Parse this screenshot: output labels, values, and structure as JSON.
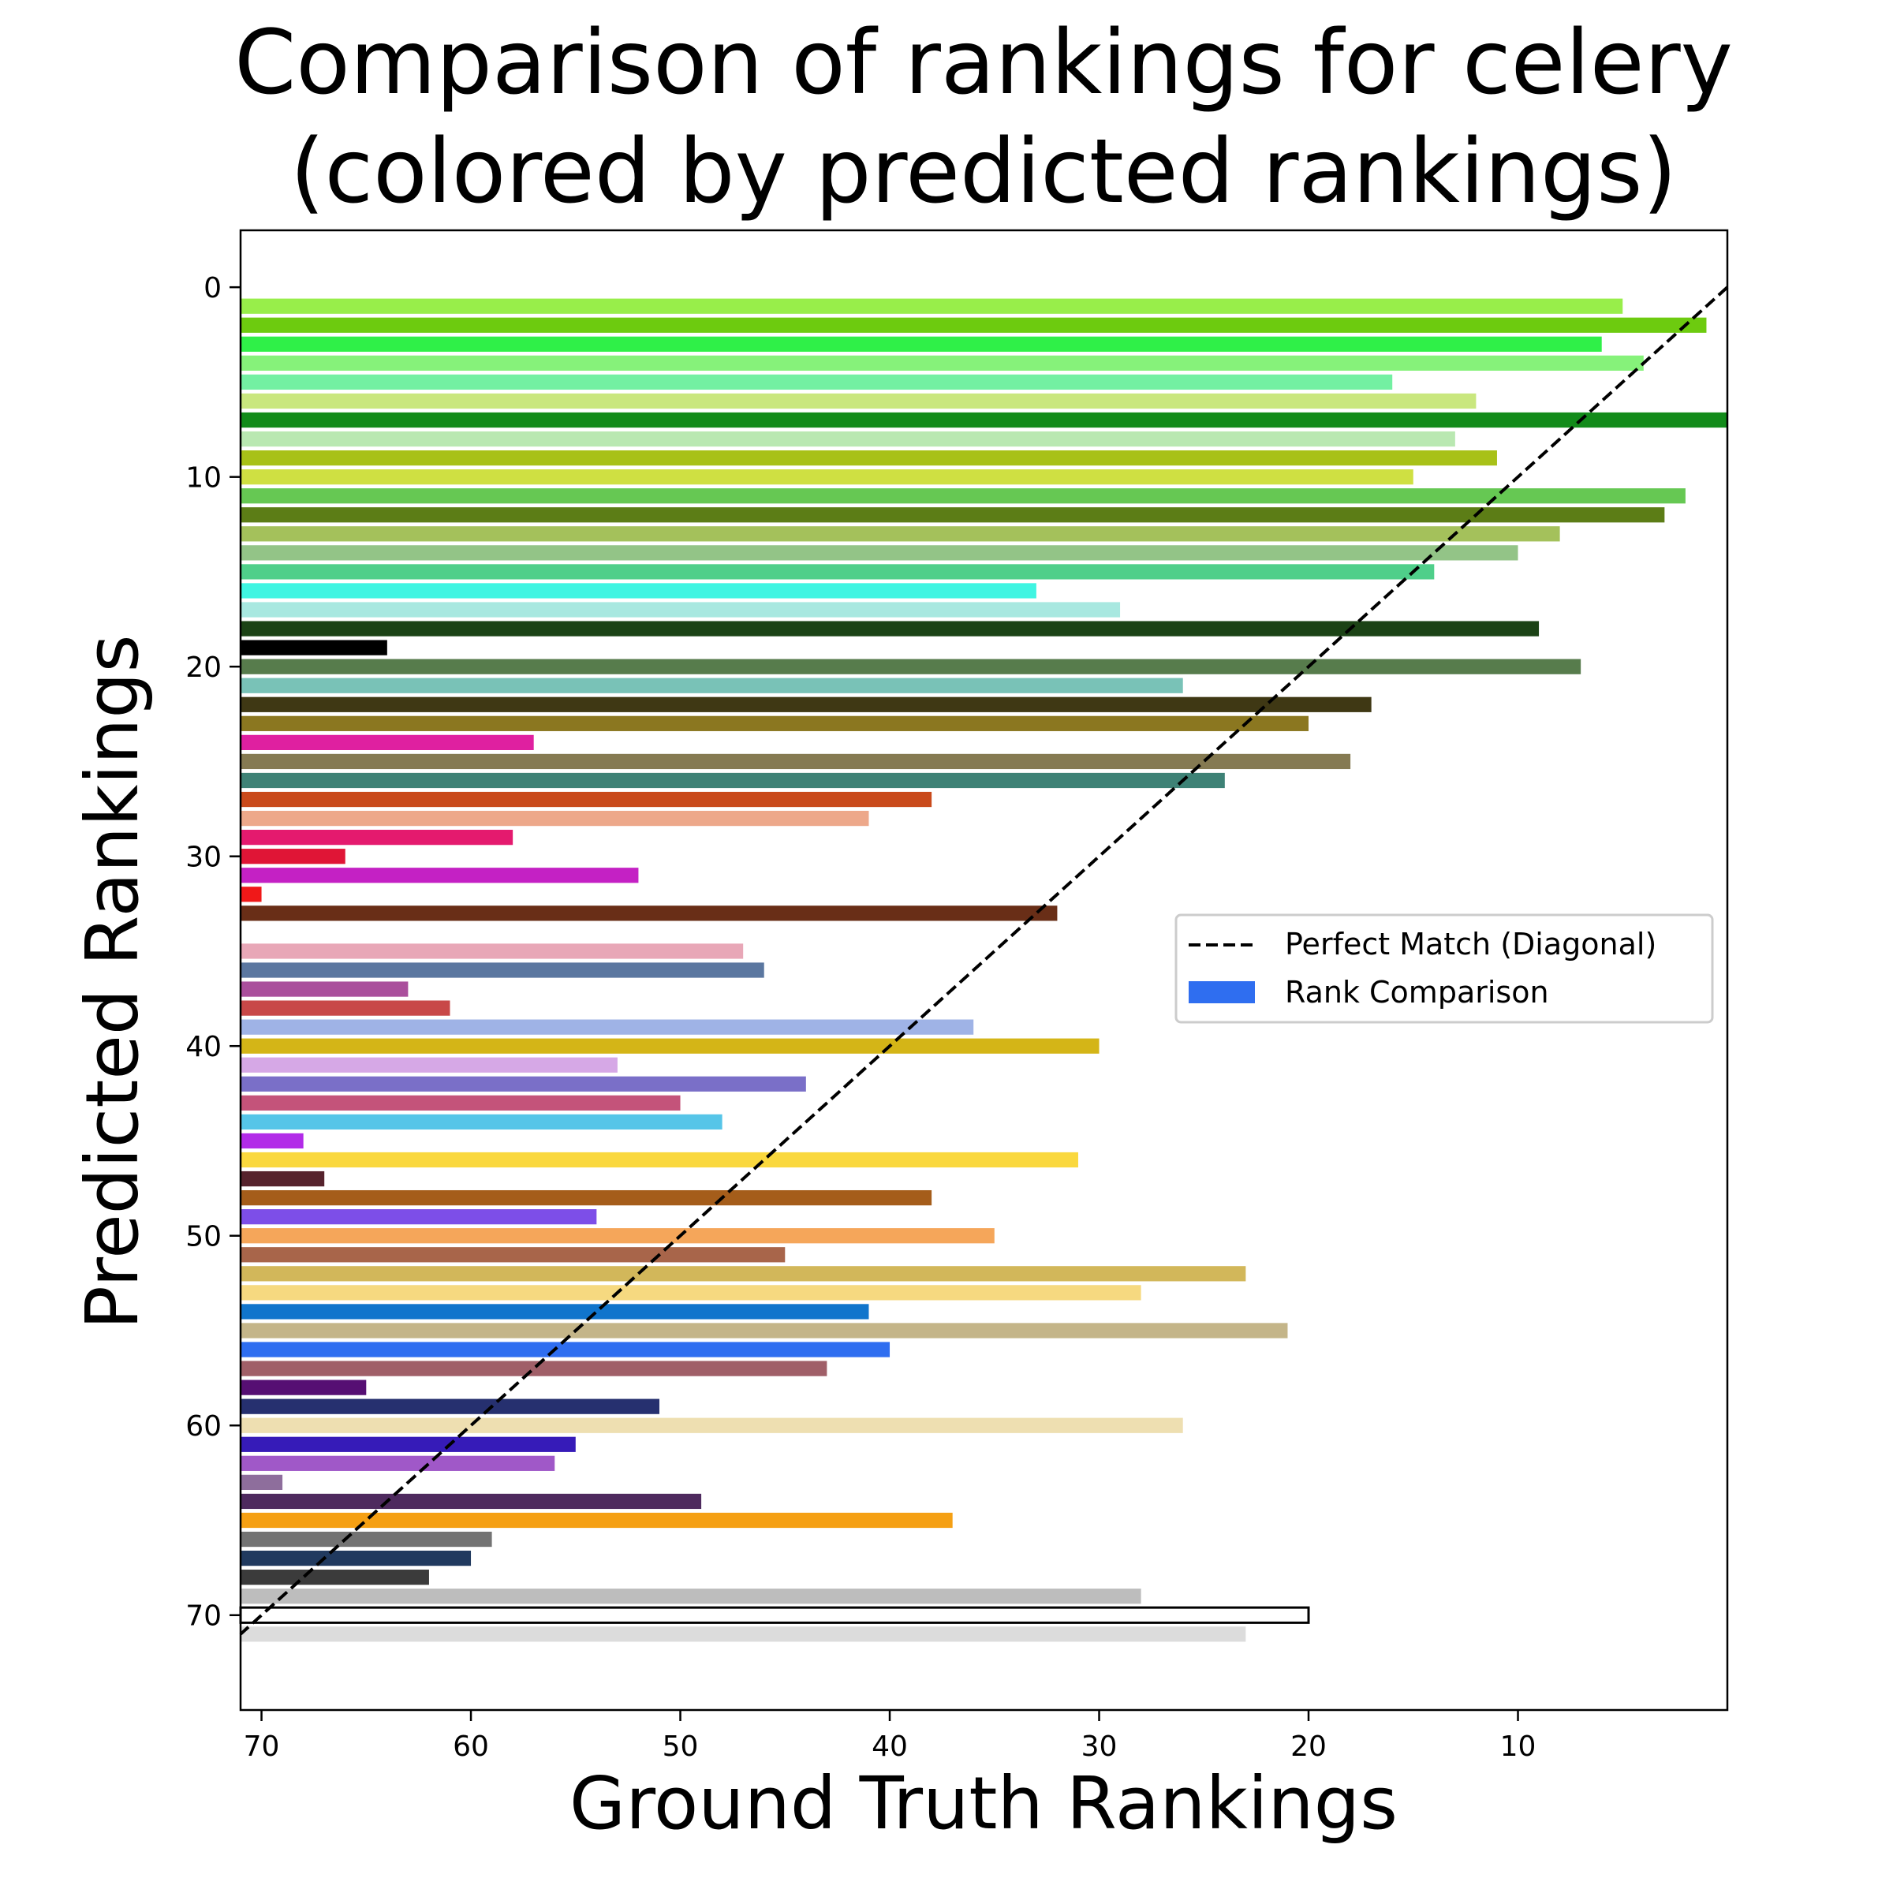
{
  "chart_data": {
    "type": "bar",
    "orientation": "horizontal",
    "title_lines": [
      "Comparison of rankings for celery",
      "(colored by predicted rankings)"
    ],
    "xlabel": "Ground Truth Rankings",
    "ylabel": "Predicted Rankings",
    "xlim": [
      71,
      0
    ],
    "ylim": [
      75,
      -3
    ],
    "x_ticks": [
      70,
      60,
      50,
      40,
      30,
      20,
      10
    ],
    "y_ticks": [
      0,
      10,
      20,
      30,
      40,
      50,
      60,
      70
    ],
    "grid": false,
    "legend_position": "center-right",
    "legend": [
      {
        "label": "Perfect Match (Diagonal)",
        "kind": "dashed-line",
        "color": "#000000"
      },
      {
        "label": "Rank Comparison",
        "kind": "patch",
        "color": "#2f6ef0"
      }
    ],
    "diagonal": {
      "from": [
        0,
        0
      ],
      "to": [
        71,
        71
      ],
      "style": "dashed",
      "color": "#000000"
    },
    "series": [
      {
        "name": "Rank Comparison",
        "points": [
          {
            "predicted": 1,
            "truth": 5,
            "color": "#98ee4a"
          },
          {
            "predicted": 2,
            "truth": 1,
            "color": "#6dcb0f"
          },
          {
            "predicted": 3,
            "truth": 6,
            "color": "#2ff048"
          },
          {
            "predicted": 4,
            "truth": 4,
            "color": "#86f27a"
          },
          {
            "predicted": 5,
            "truth": 16,
            "color": "#73f0a2"
          },
          {
            "predicted": 6,
            "truth": 12,
            "color": "#c9e77e"
          },
          {
            "predicted": 7,
            "truth": 0,
            "color": "#128b1a"
          },
          {
            "predicted": 8,
            "truth": 13,
            "color": "#b9e8b1"
          },
          {
            "predicted": 9,
            "truth": 11,
            "color": "#a8c118"
          },
          {
            "predicted": 10,
            "truth": 15,
            "color": "#cfe042"
          },
          {
            "predicted": 11,
            "truth": 2,
            "color": "#66c853"
          },
          {
            "predicted": 12,
            "truth": 3,
            "color": "#5c7d16"
          },
          {
            "predicted": 13,
            "truth": 8,
            "color": "#a4c15b"
          },
          {
            "predicted": 14,
            "truth": 10,
            "color": "#93c487"
          },
          {
            "predicted": 15,
            "truth": 14,
            "color": "#4fcf8a"
          },
          {
            "predicted": 16,
            "truth": 33,
            "color": "#3ff5e2"
          },
          {
            "predicted": 17,
            "truth": 29,
            "color": "#a8e8e0"
          },
          {
            "predicted": 18,
            "truth": 9,
            "color": "#1c4316"
          },
          {
            "predicted": 19,
            "truth": 64,
            "color": "#000000"
          },
          {
            "predicted": 20,
            "truth": 7,
            "color": "#577c4c"
          },
          {
            "predicted": 21,
            "truth": 26,
            "color": "#79c2b7"
          },
          {
            "predicted": 22,
            "truth": 17,
            "color": "#3f3814"
          },
          {
            "predicted": 23,
            "truth": 20,
            "color": "#8b7720"
          },
          {
            "predicted": 24,
            "truth": 57,
            "color": "#df20a0"
          },
          {
            "predicted": 25,
            "truth": 18,
            "color": "#857a52"
          },
          {
            "predicted": 26,
            "truth": 24,
            "color": "#3e8276"
          },
          {
            "predicted": 27,
            "truth": 38,
            "color": "#c94a1b"
          },
          {
            "predicted": 28,
            "truth": 41,
            "color": "#eda88a"
          },
          {
            "predicted": 29,
            "truth": 58,
            "color": "#e41a6e"
          },
          {
            "predicted": 30,
            "truth": 66,
            "color": "#e01536"
          },
          {
            "predicted": 31,
            "truth": 52,
            "color": "#c421c4"
          },
          {
            "predicted": 32,
            "truth": 70,
            "color": "#f01818"
          },
          {
            "predicted": 33,
            "truth": 32,
            "color": "#692e17"
          },
          {
            "predicted": 35,
            "truth": 47,
            "color": "#e8a7b7"
          },
          {
            "predicted": 36,
            "truth": 46,
            "color": "#5b77a0"
          },
          {
            "predicted": 37,
            "truth": 63,
            "color": "#aa4f9c"
          },
          {
            "predicted": 38,
            "truth": 61,
            "color": "#c84848"
          },
          {
            "predicted": 39,
            "truth": 36,
            "color": "#9fb3e6"
          },
          {
            "predicted": 40,
            "truth": 30,
            "color": "#d4b517"
          },
          {
            "predicted": 41,
            "truth": 53,
            "color": "#d6a8e6"
          },
          {
            "predicted": 42,
            "truth": 44,
            "color": "#7a6fc8"
          },
          {
            "predicted": 43,
            "truth": 50,
            "color": "#c4537a"
          },
          {
            "predicted": 44,
            "truth": 48,
            "color": "#56c5e8"
          },
          {
            "predicted": 45,
            "truth": 68,
            "color": "#b22be8"
          },
          {
            "predicted": 46,
            "truth": 31,
            "color": "#fad83e"
          },
          {
            "predicted": 47,
            "truth": 67,
            "color": "#56232d"
          },
          {
            "predicted": 48,
            "truth": 38,
            "color": "#a55d1a"
          },
          {
            "predicted": 49,
            "truth": 54,
            "color": "#7d4ee8"
          },
          {
            "predicted": 50,
            "truth": 35,
            "color": "#f5a65a"
          },
          {
            "predicted": 51,
            "truth": 45,
            "color": "#a8654a"
          },
          {
            "predicted": 52,
            "truth": 23,
            "color": "#d2b75a"
          },
          {
            "predicted": 53,
            "truth": 28,
            "color": "#f6d980"
          },
          {
            "predicted": 54,
            "truth": 41,
            "color": "#1075cc"
          },
          {
            "predicted": 55,
            "truth": 21,
            "color": "#c4b589"
          },
          {
            "predicted": 56,
            "truth": 40,
            "color": "#2f6ef0"
          },
          {
            "predicted": 57,
            "truth": 43,
            "color": "#a05f68"
          },
          {
            "predicted": 58,
            "truth": 65,
            "color": "#560f73"
          },
          {
            "predicted": 59,
            "truth": 51,
            "color": "#26306f"
          },
          {
            "predicted": 60,
            "truth": 26,
            "color": "#eedfb1"
          },
          {
            "predicted": 61,
            "truth": 55,
            "color": "#361bb8"
          },
          {
            "predicted": 62,
            "truth": 56,
            "color": "#a058c8"
          },
          {
            "predicted": 63,
            "truth": 69,
            "color": "#8e6e9c"
          },
          {
            "predicted": 64,
            "truth": 49,
            "color": "#4e2a5e"
          },
          {
            "predicted": 65,
            "truth": 37,
            "color": "#f5a014"
          },
          {
            "predicted": 66,
            "truth": 59,
            "color": "#737373"
          },
          {
            "predicted": 67,
            "truth": 60,
            "color": "#213a5f"
          },
          {
            "predicted": 68,
            "truth": 62,
            "color": "#3b3b3b"
          },
          {
            "predicted": 69,
            "truth": 28,
            "color": "#bdbdbd"
          },
          {
            "predicted": 70,
            "truth": 20,
            "color": "#ffffff",
            "outline": "#000000"
          },
          {
            "predicted": 71,
            "truth": 23,
            "color": "#dcdcdc"
          }
        ]
      }
    ]
  }
}
